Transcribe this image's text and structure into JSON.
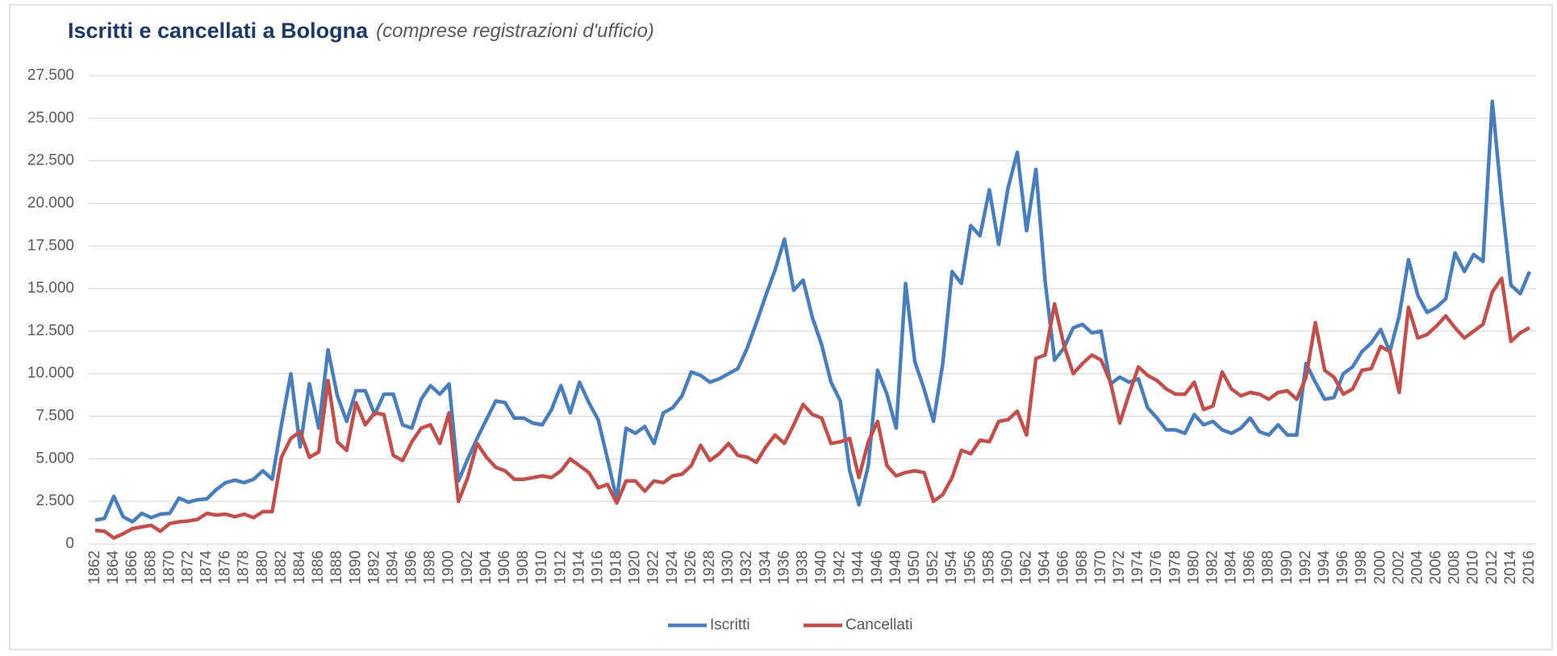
{
  "chart_data": {
    "type": "line",
    "title": "Iscritti e cancellati a Bologna",
    "subtitle": "(comprese registrazioni d'ufficio)",
    "x": [
      1862,
      1863,
      1864,
      1865,
      1866,
      1867,
      1868,
      1869,
      1870,
      1871,
      1872,
      1873,
      1874,
      1875,
      1876,
      1877,
      1878,
      1879,
      1880,
      1881,
      1882,
      1883,
      1884,
      1885,
      1886,
      1887,
      1888,
      1889,
      1890,
      1891,
      1892,
      1893,
      1894,
      1895,
      1896,
      1897,
      1898,
      1899,
      1900,
      1901,
      1902,
      1903,
      1904,
      1905,
      1906,
      1907,
      1908,
      1909,
      1910,
      1911,
      1912,
      1913,
      1914,
      1915,
      1916,
      1917,
      1918,
      1919,
      1920,
      1921,
      1922,
      1923,
      1924,
      1925,
      1926,
      1927,
      1928,
      1929,
      1930,
      1931,
      1932,
      1933,
      1934,
      1935,
      1936,
      1937,
      1938,
      1939,
      1940,
      1941,
      1942,
      1943,
      1944,
      1945,
      1946,
      1947,
      1948,
      1949,
      1950,
      1951,
      1952,
      1953,
      1954,
      1955,
      1956,
      1957,
      1958,
      1959,
      1960,
      1961,
      1962,
      1963,
      1964,
      1965,
      1966,
      1967,
      1968,
      1969,
      1970,
      1971,
      1972,
      1973,
      1974,
      1975,
      1976,
      1977,
      1978,
      1979,
      1980,
      1981,
      1982,
      1983,
      1984,
      1985,
      1986,
      1987,
      1988,
      1989,
      1990,
      1991,
      1992,
      1993,
      1994,
      1995,
      1996,
      1997,
      1998,
      1999,
      2000,
      2001,
      2002,
      2003,
      2004,
      2005,
      2006,
      2007,
      2008,
      2009,
      2010,
      2011,
      2012,
      2013,
      2014,
      2015,
      2016
    ],
    "series": [
      {
        "name": "Iscritti",
        "color": "#4a7ebb",
        "values": [
          1400,
          1500,
          2800,
          1600,
          1300,
          1800,
          1550,
          1750,
          1800,
          2700,
          2450,
          2600,
          2650,
          3200,
          3600,
          3750,
          3600,
          3800,
          4300,
          3800,
          7000,
          10000,
          5700,
          9400,
          6800,
          11400,
          8700,
          7200,
          9000,
          9000,
          7600,
          8800,
          8800,
          7000,
          6800,
          8500,
          9300,
          8800,
          9400,
          3700,
          5000,
          6200,
          7300,
          8400,
          8300,
          7400,
          7400,
          7100,
          7000,
          7900,
          9300,
          7700,
          9500,
          8300,
          7300,
          5000,
          2600,
          6800,
          6500,
          6900,
          5900,
          7700,
          8000,
          8700,
          10100,
          9900,
          9500,
          9700,
          10000,
          10300,
          11500,
          13000,
          14600,
          16100,
          17900,
          14900,
          15500,
          13300,
          11700,
          9500,
          8400,
          4300,
          2300,
          4600,
          10200,
          8800,
          6800,
          15300,
          10700,
          9100,
          7200,
          10600,
          16000,
          15300,
          18700,
          18100,
          20800,
          17600,
          20900,
          23000,
          18400,
          22000,
          15400,
          10800,
          11500,
          12700,
          12900,
          12400,
          12500,
          9400,
          9800,
          9500,
          9700,
          8000,
          7400,
          6700,
          6700,
          6500,
          7600,
          7000,
          7200,
          6700,
          6500,
          6800,
          7400,
          6600,
          6400,
          7000,
          6400,
          6400,
          10600,
          9500,
          8500,
          8600,
          10000,
          10400,
          11300,
          11800,
          12600,
          11300,
          13400,
          16700,
          14600,
          13600,
          13900,
          14400,
          17100,
          16000,
          17000,
          16600,
          26000,
          20200,
          15200,
          14700,
          16000
        ]
      },
      {
        "name": "Cancellati",
        "color": "#c0504d",
        "values": [
          800,
          750,
          350,
          600,
          900,
          1000,
          1100,
          750,
          1200,
          1300,
          1350,
          1450,
          1800,
          1700,
          1750,
          1600,
          1750,
          1550,
          1900,
          1900,
          5100,
          6200,
          6600,
          5100,
          5400,
          9600,
          6000,
          5500,
          8300,
          7000,
          7700,
          7600,
          5200,
          4900,
          6000,
          6800,
          7000,
          5900,
          7700,
          2500,
          3900,
          5900,
          5100,
          4500,
          4300,
          3800,
          3800,
          3900,
          4000,
          3900,
          4300,
          5000,
          4600,
          4200,
          3300,
          3500,
          2400,
          3700,
          3700,
          3100,
          3700,
          3600,
          4000,
          4100,
          4600,
          5800,
          4900,
          5300,
          5900,
          5200,
          5100,
          4800,
          5700,
          6400,
          5900,
          7000,
          8200,
          7600,
          7400,
          5900,
          6000,
          6200,
          3900,
          6000,
          7200,
          4600,
          4000,
          4200,
          4300,
          4200,
          2500,
          2900,
          3900,
          5500,
          5300,
          6100,
          6000,
          7200,
          7300,
          7800,
          6400,
          10900,
          11100,
          14100,
          11700,
          10000,
          10600,
          11100,
          10800,
          9500,
          7100,
          8800,
          10400,
          9900,
          9600,
          9100,
          8800,
          8800,
          9500,
          7900,
          8100,
          10100,
          9100,
          8700,
          8900,
          8800,
          8500,
          8900,
          9000,
          8500,
          9800,
          13000,
          10200,
          9800,
          8800,
          9100,
          10200,
          10300,
          11600,
          11300,
          8900,
          13900,
          12100,
          12300,
          12800,
          13400,
          12700,
          12100,
          12500,
          12900,
          14800,
          15600,
          11900,
          12400,
          12700
        ]
      }
    ],
    "xlim": [
      1862,
      2016
    ],
    "xticks": [
      1862,
      1864,
      1866,
      1868,
      1870,
      1872,
      1874,
      1876,
      1878,
      1880,
      1882,
      1884,
      1886,
      1888,
      1890,
      1892,
      1894,
      1896,
      1898,
      1900,
      1902,
      1904,
      1906,
      1908,
      1910,
      1912,
      1914,
      1916,
      1918,
      1920,
      1922,
      1924,
      1926,
      1928,
      1930,
      1932,
      1934,
      1936,
      1938,
      1940,
      1942,
      1944,
      1946,
      1948,
      1950,
      1952,
      1954,
      1956,
      1958,
      1960,
      1962,
      1964,
      1966,
      1968,
      1970,
      1972,
      1974,
      1976,
      1978,
      1980,
      1982,
      1984,
      1986,
      1988,
      1990,
      1992,
      1994,
      1996,
      1998,
      2000,
      2002,
      2004,
      2006,
      2008,
      2010,
      2012,
      2014,
      2016
    ],
    "ylim": [
      0,
      27500
    ],
    "yticks": [
      0,
      {
        "value": 2500,
        "label": "2.500"
      },
      {
        "value": 5000,
        "label": "5.000"
      },
      {
        "value": 7500,
        "label": "7.500"
      },
      {
        "value": 10000,
        "label": "10.000"
      },
      {
        "value": 12500,
        "label": "12.500"
      },
      {
        "value": 15000,
        "label": "15.000"
      },
      {
        "value": 17500,
        "label": "17.500"
      },
      {
        "value": 20000,
        "label": "20.000"
      },
      {
        "value": 22500,
        "label": "22.500"
      },
      {
        "value": 25000,
        "label": "25.000"
      },
      {
        "value": 27500,
        "label": "27.500"
      }
    ],
    "grid": true,
    "legend": "bottom"
  }
}
